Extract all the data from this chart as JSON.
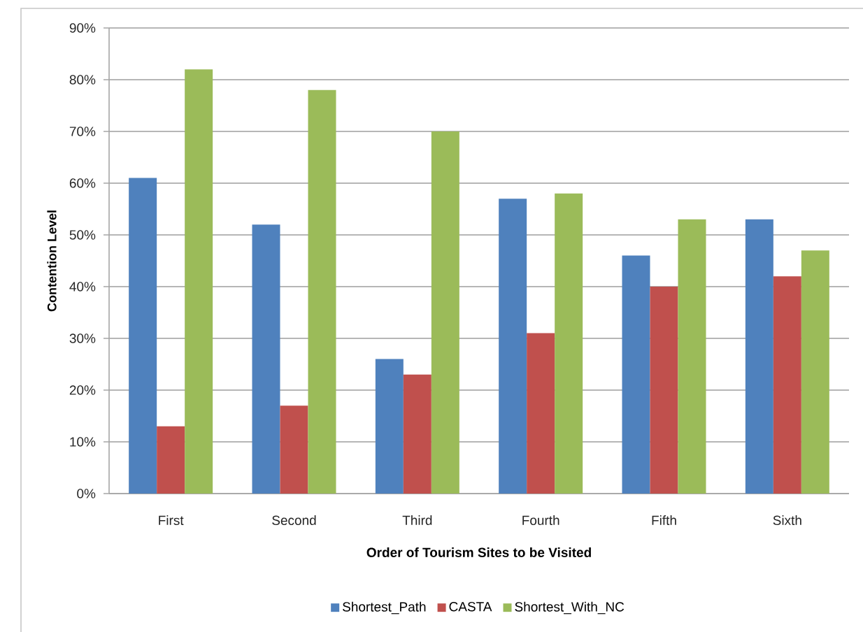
{
  "chart_data": {
    "type": "bar",
    "xlabel": "Order of Tourism Sites to be Visited",
    "ylabel": "Contention Level",
    "categories": [
      "First",
      "Second",
      "Third",
      "Fourth",
      "Fifth",
      "Sixth"
    ],
    "series": [
      {
        "name": "Shortest_Path",
        "color": "#4f81bd",
        "values": [
          61,
          52,
          26,
          57,
          46,
          53
        ]
      },
      {
        "name": "CASTA",
        "color": "#c0504d",
        "values": [
          13,
          17,
          23,
          31,
          40,
          42
        ]
      },
      {
        "name": "Shortest_With_NC",
        "color": "#9bbb59",
        "values": [
          82,
          78,
          70,
          58,
          53,
          47
        ]
      }
    ],
    "ylim": [
      0,
      90
    ],
    "yticks": [
      {
        "value": 0,
        "label": "0%"
      },
      {
        "value": 10,
        "label": "10%"
      },
      {
        "value": 20,
        "label": "20%"
      },
      {
        "value": 30,
        "label": "30%"
      },
      {
        "value": 40,
        "label": "40%"
      },
      {
        "value": 50,
        "label": "50%"
      },
      {
        "value": 60,
        "label": "60%"
      },
      {
        "value": 70,
        "label": "70%"
      },
      {
        "value": 80,
        "label": "80%"
      },
      {
        "value": 90,
        "label": "90%"
      }
    ],
    "grid": "y",
    "legend": "bottom"
  }
}
